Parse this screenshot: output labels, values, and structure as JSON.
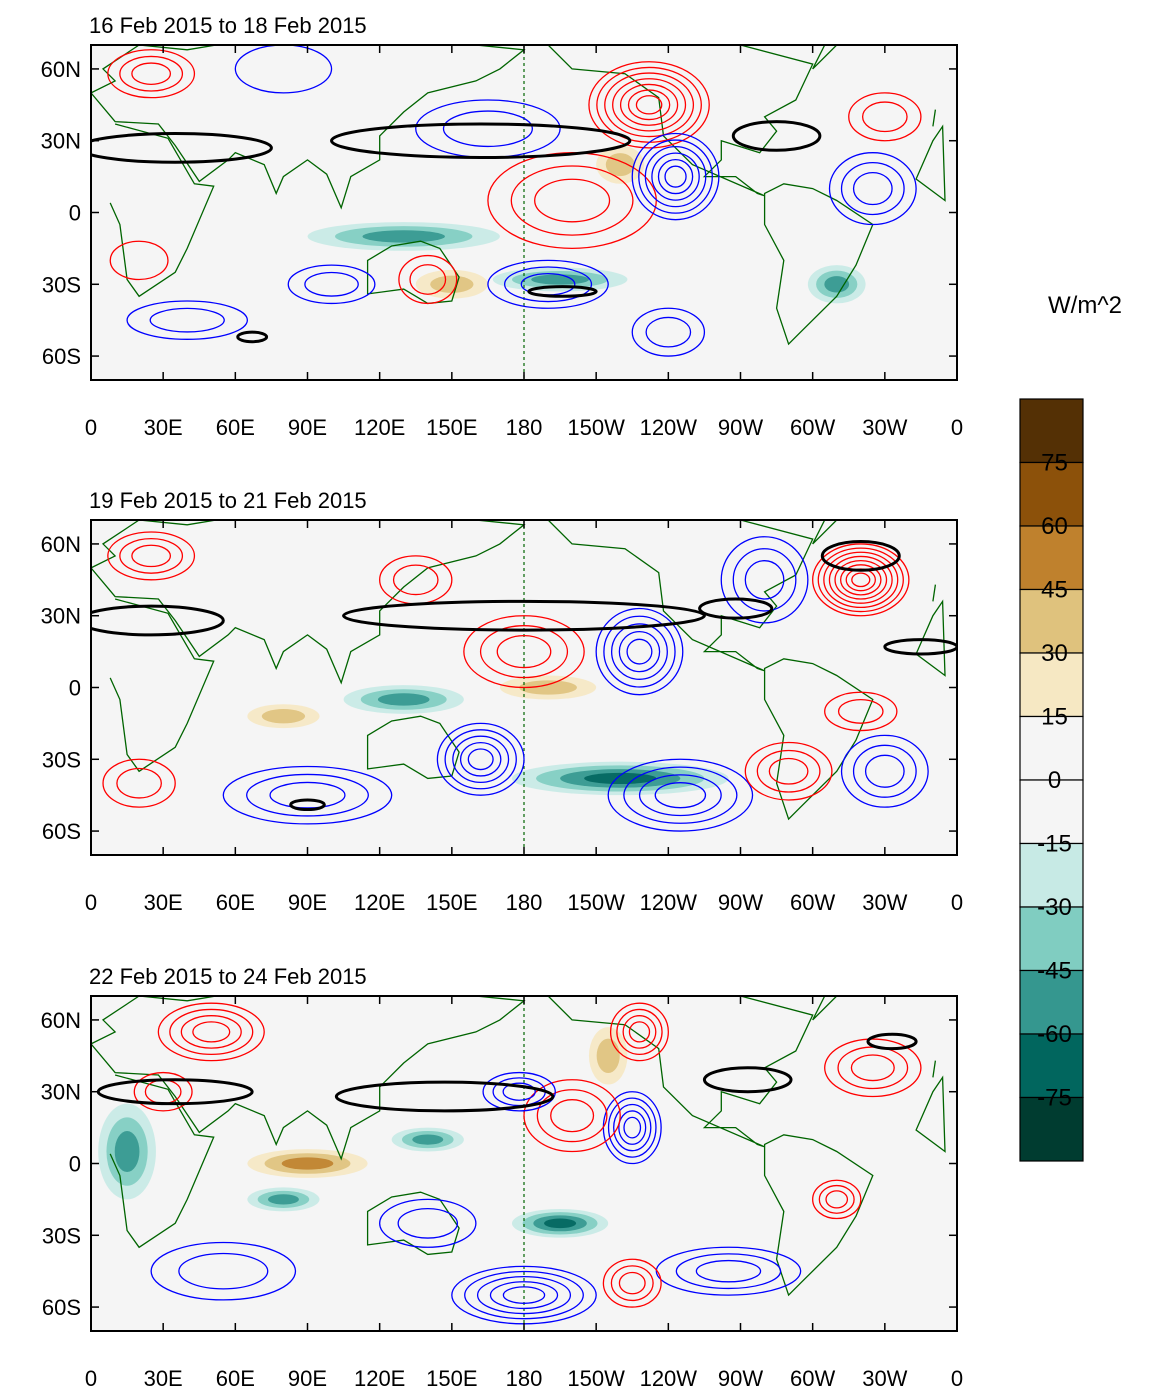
{
  "figure": {
    "units_label": "W/m^2"
  },
  "chart_data": [
    {
      "type": "heatmap",
      "title": "16 Feb 2015 to 18 Feb 2015",
      "xlabel": "",
      "ylabel": "",
      "x_ticks": [
        "0",
        "30E",
        "60E",
        "90E",
        "120E",
        "150E",
        "180",
        "150W",
        "120W",
        "90W",
        "60W",
        "30W",
        "0"
      ],
      "y_ticks": [
        "60N",
        "30N",
        "0",
        "30S",
        "60S"
      ],
      "xlim": [
        0,
        360
      ],
      "ylim": [
        -70,
        70
      ],
      "vertical_reference_line": "180",
      "features": [
        {
          "kind": "positive",
          "lon": 200,
          "lat": 5,
          "rx": 35,
          "ry": 20,
          "levels": 3
        },
        {
          "kind": "positive",
          "lon": 232,
          "lat": 45,
          "rx": 25,
          "ry": 18,
          "levels": 7
        },
        {
          "kind": "negative",
          "lon": 243,
          "lat": 15,
          "rx": 18,
          "ry": 18,
          "levels": 6
        },
        {
          "kind": "negative",
          "lon": 190,
          "lat": -30,
          "rx": 25,
          "ry": 10,
          "levels": 3
        },
        {
          "kind": "positive",
          "lon": 25,
          "lat": 58,
          "rx": 18,
          "ry": 10,
          "levels": 3
        },
        {
          "kind": "negative",
          "lon": 80,
          "lat": 60,
          "rx": 20,
          "ry": 10,
          "levels": 1
        },
        {
          "kind": "negative",
          "lon": 165,
          "lat": 35,
          "rx": 30,
          "ry": 12,
          "levels": 2
        },
        {
          "kind": "positive",
          "lon": 140,
          "lat": -28,
          "rx": 12,
          "ry": 10,
          "levels": 2
        },
        {
          "kind": "negative",
          "lon": 100,
          "lat": -30,
          "rx": 18,
          "ry": 8,
          "levels": 2
        },
        {
          "kind": "negative",
          "lon": 325,
          "lat": 10,
          "rx": 18,
          "ry": 15,
          "levels": 3
        },
        {
          "kind": "positive",
          "lon": 330,
          "lat": 40,
          "rx": 15,
          "ry": 10,
          "levels": 2
        },
        {
          "kind": "negative",
          "lon": 240,
          "lat": -50,
          "rx": 15,
          "ry": 10,
          "levels": 2
        },
        {
          "kind": "negative",
          "lon": 40,
          "lat": -45,
          "rx": 25,
          "ry": 8,
          "levels": 2
        },
        {
          "kind": "positive",
          "lon": 20,
          "lat": -20,
          "rx": 12,
          "ry": 8,
          "levels": 1
        },
        {
          "kind": "olr_negative",
          "lon": 130,
          "lat": -10,
          "rx": 40,
          "ry": 6,
          "levels": 2
        },
        {
          "kind": "olr_negative",
          "lon": 195,
          "lat": -28,
          "rx": 28,
          "ry": 5,
          "levels": 2
        },
        {
          "kind": "olr_negative",
          "lon": 310,
          "lat": -30,
          "rx": 12,
          "ry": 8,
          "levels": 2
        },
        {
          "kind": "olr_positive",
          "lon": 220,
          "lat": 20,
          "rx": 10,
          "ry": 8,
          "levels": 1
        },
        {
          "kind": "olr_positive",
          "lon": 150,
          "lat": -30,
          "rx": 15,
          "ry": 6,
          "levels": 1
        }
      ],
      "thick_contours": [
        {
          "lon": 35,
          "lat": 27,
          "rx": 40,
          "ry": 6
        },
        {
          "lon": 162,
          "lat": 30,
          "rx": 62,
          "ry": 7
        },
        {
          "lon": 285,
          "lat": 32,
          "rx": 18,
          "ry": 6
        },
        {
          "lon": 196,
          "lat": -33,
          "rx": 14,
          "ry": 2
        },
        {
          "lon": 67,
          "lat": -52,
          "rx": 6,
          "ry": 2
        }
      ]
    },
    {
      "type": "heatmap",
      "title": "19 Feb 2015 to 21 Feb 2015",
      "xlabel": "",
      "ylabel": "",
      "x_ticks": [
        "0",
        "30E",
        "60E",
        "90E",
        "120E",
        "150E",
        "180",
        "150W",
        "120W",
        "90W",
        "60W",
        "30W",
        "0"
      ],
      "y_ticks": [
        "60N",
        "30N",
        "0",
        "30S",
        "60S"
      ],
      "xlim": [
        0,
        360
      ],
      "ylim": [
        -70,
        70
      ],
      "vertical_reference_line": "180",
      "features": [
        {
          "kind": "positive",
          "lon": 320,
          "lat": 45,
          "rx": 20,
          "ry": 15,
          "levels": 8
        },
        {
          "kind": "negative",
          "lon": 228,
          "lat": 15,
          "rx": 18,
          "ry": 18,
          "levels": 5
        },
        {
          "kind": "positive",
          "lon": 180,
          "lat": 15,
          "rx": 25,
          "ry": 15,
          "levels": 3
        },
        {
          "kind": "negative",
          "lon": 162,
          "lat": -30,
          "rx": 18,
          "ry": 15,
          "levels": 5
        },
        {
          "kind": "negative",
          "lon": 245,
          "lat": -45,
          "rx": 30,
          "ry": 15,
          "levels": 4
        },
        {
          "kind": "negative",
          "lon": 90,
          "lat": -45,
          "rx": 35,
          "ry": 12,
          "levels": 3
        },
        {
          "kind": "positive",
          "lon": 25,
          "lat": 55,
          "rx": 18,
          "ry": 10,
          "levels": 3
        },
        {
          "kind": "positive",
          "lon": 135,
          "lat": 45,
          "rx": 15,
          "ry": 10,
          "levels": 2
        },
        {
          "kind": "negative",
          "lon": 280,
          "lat": 45,
          "rx": 18,
          "ry": 18,
          "levels": 3
        },
        {
          "kind": "positive",
          "lon": 290,
          "lat": -35,
          "rx": 18,
          "ry": 12,
          "levels": 3
        },
        {
          "kind": "negative",
          "lon": 330,
          "lat": -35,
          "rx": 18,
          "ry": 15,
          "levels": 3
        },
        {
          "kind": "positive",
          "lon": 320,
          "lat": -10,
          "rx": 15,
          "ry": 8,
          "levels": 2
        },
        {
          "kind": "positive",
          "lon": 20,
          "lat": -40,
          "rx": 15,
          "ry": 10,
          "levels": 2
        },
        {
          "kind": "olr_negative",
          "lon": 220,
          "lat": -38,
          "rx": 45,
          "ry": 7,
          "levels": 3
        },
        {
          "kind": "olr_negative",
          "lon": 130,
          "lat": -5,
          "rx": 25,
          "ry": 6,
          "levels": 2
        },
        {
          "kind": "olr_positive",
          "lon": 190,
          "lat": 0,
          "rx": 20,
          "ry": 5,
          "levels": 1
        },
        {
          "kind": "olr_positive",
          "lon": 80,
          "lat": -12,
          "rx": 15,
          "ry": 5,
          "levels": 1
        }
      ],
      "thick_contours": [
        {
          "lon": 25,
          "lat": 28,
          "rx": 30,
          "ry": 6
        },
        {
          "lon": 180,
          "lat": 30,
          "rx": 75,
          "ry": 6
        },
        {
          "lon": 268,
          "lat": 33,
          "rx": 15,
          "ry": 4
        },
        {
          "lon": 320,
          "lat": 55,
          "rx": 16,
          "ry": 6
        },
        {
          "lon": 345,
          "lat": 17,
          "rx": 15,
          "ry": 3
        },
        {
          "lon": 90,
          "lat": -49,
          "rx": 7,
          "ry": 2
        }
      ]
    },
    {
      "type": "heatmap",
      "title": "22 Feb 2015 to 24 Feb 2015",
      "xlabel": "",
      "ylabel": "",
      "x_ticks": [
        "0",
        "30E",
        "60E",
        "90E",
        "120E",
        "150E",
        "180",
        "150W",
        "120W",
        "90W",
        "60W",
        "30W",
        "0"
      ],
      "y_ticks": [
        "60N",
        "30N",
        "0",
        "30S",
        "60S"
      ],
      "xlim": [
        0,
        360
      ],
      "ylim": [
        -70,
        70
      ],
      "vertical_reference_line": "180",
      "features": [
        {
          "kind": "negative",
          "lon": 180,
          "lat": -55,
          "rx": 30,
          "ry": 12,
          "levels": 5
        },
        {
          "kind": "positive",
          "lon": 228,
          "lat": 55,
          "rx": 12,
          "ry": 12,
          "levels": 4
        },
        {
          "kind": "negative",
          "lon": 225,
          "lat": 15,
          "rx": 12,
          "ry": 15,
          "levels": 5
        },
        {
          "kind": "positive",
          "lon": 200,
          "lat": 20,
          "rx": 20,
          "ry": 15,
          "levels": 3
        },
        {
          "kind": "positive",
          "lon": 50,
          "lat": 55,
          "rx": 22,
          "ry": 12,
          "levels": 4
        },
        {
          "kind": "negative",
          "lon": 178,
          "lat": 30,
          "rx": 15,
          "ry": 8,
          "levels": 3
        },
        {
          "kind": "positive",
          "lon": 325,
          "lat": 40,
          "rx": 20,
          "ry": 12,
          "levels": 3
        },
        {
          "kind": "negative",
          "lon": 265,
          "lat": -45,
          "rx": 30,
          "ry": 10,
          "levels": 3
        },
        {
          "kind": "positive",
          "lon": 225,
          "lat": -50,
          "rx": 12,
          "ry": 10,
          "levels": 3
        },
        {
          "kind": "positive",
          "lon": 310,
          "lat": -15,
          "rx": 10,
          "ry": 8,
          "levels": 3
        },
        {
          "kind": "negative",
          "lon": 140,
          "lat": -25,
          "rx": 20,
          "ry": 10,
          "levels": 2
        },
        {
          "kind": "positive",
          "lon": 30,
          "lat": 30,
          "rx": 12,
          "ry": 8,
          "levels": 2
        },
        {
          "kind": "negative",
          "lon": 55,
          "lat": -45,
          "rx": 30,
          "ry": 12,
          "levels": 2
        },
        {
          "kind": "olr_negative",
          "lon": 195,
          "lat": -25,
          "rx": 20,
          "ry": 6,
          "levels": 3
        },
        {
          "kind": "olr_negative",
          "lon": 80,
          "lat": -15,
          "rx": 15,
          "ry": 5,
          "levels": 2
        },
        {
          "kind": "olr_negative",
          "lon": 140,
          "lat": 10,
          "rx": 15,
          "ry": 5,
          "levels": 2
        },
        {
          "kind": "olr_negative",
          "lon": 15,
          "lat": 5,
          "rx": 12,
          "ry": 20,
          "levels": 2
        },
        {
          "kind": "olr_positive",
          "lon": 90,
          "lat": 0,
          "rx": 25,
          "ry": 6,
          "levels": 2
        },
        {
          "kind": "olr_positive",
          "lon": 215,
          "lat": 45,
          "rx": 8,
          "ry": 12,
          "levels": 1
        }
      ],
      "thick_contours": [
        {
          "lon": 35,
          "lat": 30,
          "rx": 32,
          "ry": 5
        },
        {
          "lon": 147,
          "lat": 28,
          "rx": 45,
          "ry": 6
        },
        {
          "lon": 273,
          "lat": 35,
          "rx": 18,
          "ry": 5
        },
        {
          "lon": 333,
          "lat": 51,
          "rx": 10,
          "ry": 3
        }
      ]
    }
  ],
  "colorbar": {
    "levels": [
      "75",
      "60",
      "45",
      "30",
      "15",
      "0",
      "-15",
      "-30",
      "-45",
      "-60",
      "-75"
    ],
    "colors": [
      "#543005",
      "#8c510a",
      "#bf812d",
      "#dfc27d",
      "#f6e8c3",
      "#f5f5f5",
      "#f5f5f5",
      "#c7eae5",
      "#80cdc1",
      "#35978f",
      "#01665e",
      "#003c30"
    ]
  },
  "colors": {
    "positive_contour": "#ff0000",
    "negative_contour": "#0000ff",
    "coastline": "#006400",
    "thick_contour": "#000000",
    "background_field": "#f5f5f5"
  }
}
